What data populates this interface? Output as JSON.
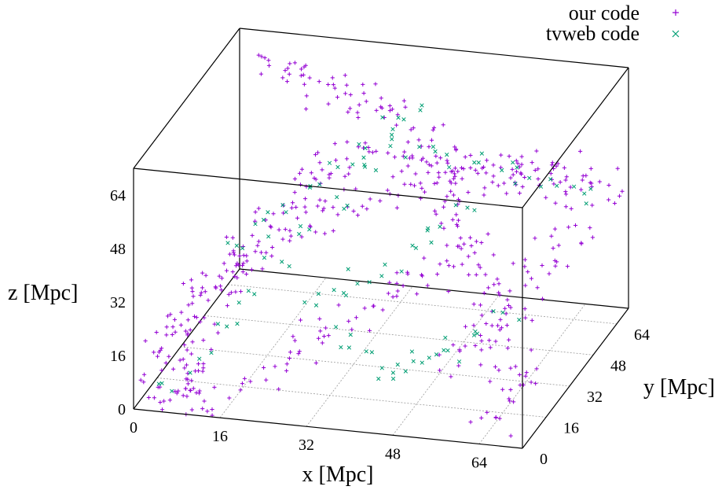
{
  "chart_data": {
    "type": "scatter",
    "dimension": "3d",
    "grid": true,
    "legend_position": "top-right",
    "axes": {
      "x": {
        "label": "x [Mpc]",
        "range": [
          0,
          72
        ],
        "ticks": [
          0,
          16,
          32,
          48,
          64
        ]
      },
      "y": {
        "label": "y [Mpc]",
        "range": [
          0,
          72
        ],
        "ticks": [
          0,
          16,
          32,
          48,
          64
        ]
      },
      "z": {
        "label": "z [Mpc]",
        "range": [
          0,
          72
        ],
        "ticks": [
          0,
          16,
          32,
          48,
          64
        ]
      }
    },
    "series": [
      {
        "name": "our code",
        "marker": "+",
        "color": "#9400d3",
        "points": [
          [
            2,
            3,
            2
          ],
          [
            4,
            2,
            6
          ],
          [
            6,
            5,
            10
          ],
          [
            3,
            8,
            14
          ],
          [
            5,
            10,
            18
          ],
          [
            8,
            12,
            22
          ],
          [
            10,
            14,
            26
          ],
          [
            12,
            15,
            30
          ],
          [
            14,
            16,
            34
          ],
          [
            16,
            18,
            38
          ],
          [
            18,
            19,
            42
          ],
          [
            20,
            20,
            46
          ],
          [
            22,
            21,
            50
          ],
          [
            24,
            20,
            54
          ],
          [
            26,
            22,
            58
          ],
          [
            28,
            20,
            62
          ],
          [
            30,
            18,
            66
          ],
          [
            32,
            20,
            68
          ],
          [
            36,
            24,
            70
          ],
          [
            40,
            26,
            68
          ],
          [
            44,
            28,
            66
          ],
          [
            48,
            30,
            64
          ],
          [
            52,
            32,
            62
          ],
          [
            56,
            34,
            60
          ],
          [
            60,
            36,
            58
          ],
          [
            64,
            40,
            56
          ],
          [
            68,
            44,
            54
          ],
          [
            70,
            48,
            52
          ],
          [
            66,
            52,
            50
          ],
          [
            62,
            56,
            48
          ],
          [
            58,
            60,
            46
          ],
          [
            54,
            64,
            44
          ],
          [
            50,
            66,
            42
          ],
          [
            46,
            68,
            40
          ],
          [
            42,
            70,
            38
          ],
          [
            38,
            68,
            36
          ],
          [
            34,
            66,
            34
          ],
          [
            30,
            64,
            32
          ],
          [
            26,
            60,
            30
          ],
          [
            22,
            58,
            28
          ],
          [
            18,
            54,
            26
          ],
          [
            14,
            50,
            24
          ],
          [
            10,
            46,
            22
          ],
          [
            8,
            42,
            20
          ],
          [
            6,
            38,
            18
          ],
          [
            4,
            34,
            16
          ],
          [
            2,
            30,
            14
          ],
          [
            3,
            26,
            12
          ],
          [
            4,
            22,
            10
          ],
          [
            5,
            18,
            8
          ],
          [
            6,
            14,
            6
          ],
          [
            8,
            10,
            4
          ],
          [
            10,
            6,
            3
          ],
          [
            12,
            4,
            2
          ],
          [
            14,
            2,
            1
          ],
          [
            66,
            4,
            6
          ],
          [
            68,
            6,
            10
          ],
          [
            70,
            8,
            14
          ],
          [
            68,
            10,
            18
          ],
          [
            66,
            12,
            22
          ],
          [
            64,
            14,
            26
          ],
          [
            62,
            16,
            30
          ],
          [
            60,
            18,
            34
          ],
          [
            58,
            20,
            38
          ],
          [
            56,
            22,
            42
          ],
          [
            54,
            24,
            46
          ],
          [
            52,
            26,
            50
          ],
          [
            50,
            28,
            54
          ],
          [
            48,
            30,
            58
          ],
          [
            46,
            32,
            62
          ],
          [
            44,
            34,
            66
          ],
          [
            42,
            36,
            70
          ],
          [
            38,
            40,
            71
          ],
          [
            34,
            44,
            70
          ],
          [
            30,
            48,
            69
          ],
          [
            26,
            52,
            68
          ],
          [
            22,
            56,
            67
          ],
          [
            18,
            60,
            66
          ],
          [
            14,
            64,
            65
          ],
          [
            10,
            68,
            64
          ],
          [
            6,
            70,
            63
          ],
          [
            70,
            66,
            40
          ],
          [
            68,
            62,
            36
          ],
          [
            66,
            58,
            32
          ],
          [
            64,
            54,
            28
          ],
          [
            62,
            50,
            24
          ],
          [
            60,
            46,
            20
          ],
          [
            58,
            42,
            16
          ],
          [
            56,
            38,
            12
          ],
          [
            54,
            34,
            8
          ],
          [
            52,
            30,
            4
          ],
          [
            20,
            6,
            8
          ],
          [
            24,
            8,
            12
          ],
          [
            28,
            10,
            16
          ],
          [
            32,
            12,
            20
          ],
          [
            36,
            14,
            24
          ],
          [
            40,
            16,
            28
          ],
          [
            44,
            18,
            32
          ],
          [
            48,
            20,
            36
          ],
          [
            52,
            22,
            40
          ],
          [
            56,
            24,
            44
          ]
        ]
      },
      {
        "name": "tvweb code",
        "marker": "x",
        "color": "#009e73",
        "points": [
          [
            6,
            4,
            4
          ],
          [
            10,
            8,
            12
          ],
          [
            14,
            12,
            20
          ],
          [
            18,
            16,
            28
          ],
          [
            22,
            20,
            36
          ],
          [
            26,
            24,
            44
          ],
          [
            30,
            28,
            52
          ],
          [
            34,
            32,
            60
          ],
          [
            38,
            36,
            66
          ],
          [
            42,
            40,
            62
          ],
          [
            46,
            44,
            58
          ],
          [
            50,
            48,
            54
          ],
          [
            54,
            52,
            50
          ],
          [
            58,
            56,
            46
          ],
          [
            62,
            60,
            42
          ],
          [
            66,
            64,
            38
          ],
          [
            30,
            42,
            18
          ],
          [
            34,
            46,
            22
          ],
          [
            38,
            50,
            26
          ],
          [
            42,
            54,
            30
          ],
          [
            46,
            58,
            34
          ],
          [
            24,
            36,
            14
          ],
          [
            28,
            40,
            16
          ],
          [
            32,
            30,
            10
          ],
          [
            36,
            26,
            8
          ],
          [
            40,
            22,
            6
          ],
          [
            44,
            18,
            10
          ],
          [
            48,
            14,
            14
          ],
          [
            52,
            10,
            18
          ],
          [
            56,
            8,
            22
          ],
          [
            60,
            12,
            26
          ],
          [
            64,
            16,
            30
          ],
          [
            12,
            20,
            40
          ],
          [
            16,
            24,
            44
          ],
          [
            20,
            28,
            48
          ],
          [
            24,
            32,
            52
          ],
          [
            28,
            36,
            56
          ],
          [
            32,
            40,
            60
          ],
          [
            36,
            44,
            64
          ],
          [
            40,
            48,
            68
          ]
        ]
      }
    ]
  }
}
